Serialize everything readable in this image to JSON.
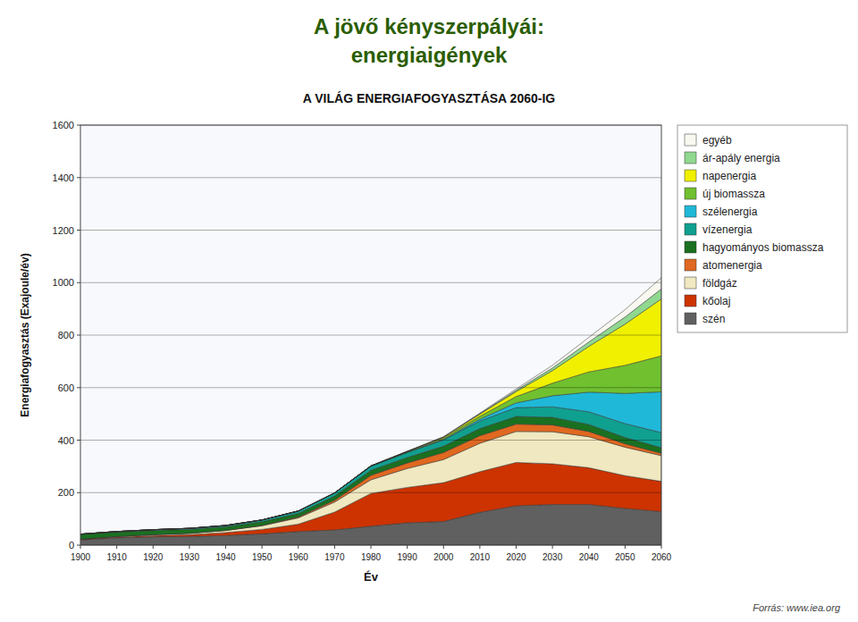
{
  "chart_data": {
    "type": "area",
    "stacked": true,
    "title": [
      "A jövő kényszerpályái:",
      "energiaigények"
    ],
    "subtitle": "A VILÁG ENERGIAFOGYASZTÁSA 2060-IG",
    "x_label": "Év",
    "y_label": "Energiafogyasztás (Exajoule/év)",
    "source": "Forrás: www.iea.org",
    "x": [
      1900,
      1910,
      1920,
      1930,
      1940,
      1950,
      1960,
      1970,
      1980,
      1990,
      2000,
      2010,
      2020,
      2030,
      2040,
      2050,
      2060
    ],
    "xlim": [
      1900,
      2060
    ],
    "xticks": [
      1900,
      1910,
      1920,
      1930,
      1940,
      1950,
      1960,
      1970,
      1980,
      1990,
      2000,
      2010,
      2020,
      2030,
      2040,
      2050,
      2060
    ],
    "ylim": [
      0,
      1600
    ],
    "yticks": [
      0,
      200,
      400,
      600,
      800,
      1000,
      1200,
      1400,
      1600
    ],
    "grid": true,
    "legend": "right",
    "series": [
      {
        "name": "szén",
        "color": "#606060",
        "values": [
          20,
          28,
          32,
          33,
          37,
          43,
          52,
          58,
          72,
          85,
          90,
          125,
          150,
          155,
          155,
          140,
          128
        ]
      },
      {
        "name": "kőolaj",
        "color": "#cc3300",
        "values": [
          2,
          3,
          5,
          7,
          11,
          17,
          28,
          68,
          125,
          135,
          148,
          155,
          165,
          155,
          140,
          125,
          115
        ]
      },
      {
        "name": "földgáz",
        "color": "#f0e8c0",
        "values": [
          1,
          2,
          3,
          5,
          8,
          14,
          24,
          38,
          52,
          72,
          88,
          108,
          118,
          122,
          118,
          108,
          98
        ]
      },
      {
        "name": "atomenergia",
        "color": "#e06820",
        "values": [
          0,
          0,
          0,
          0,
          0,
          1,
          3,
          7,
          17,
          21,
          27,
          29,
          28,
          26,
          20,
          13,
          9
        ]
      },
      {
        "name": "hagyományos biomassza",
        "color": "#1a7020",
        "values": [
          18,
          17,
          16,
          15,
          14,
          14,
          14,
          16,
          19,
          21,
          24,
          27,
          29,
          29,
          27,
          24,
          21
        ]
      },
      {
        "name": "vízenergia",
        "color": "#10a090",
        "values": [
          1,
          2,
          3,
          4,
          5,
          7,
          9,
          12,
          16,
          19,
          24,
          29,
          34,
          40,
          48,
          53,
          58
        ]
      },
      {
        "name": "szélenergia",
        "color": "#20b8d8",
        "values": [
          0,
          0,
          0,
          0,
          0,
          0,
          0,
          0,
          0,
          1,
          2,
          7,
          18,
          42,
          75,
          115,
          155
        ]
      },
      {
        "name": "új biomassza",
        "color": "#70c030",
        "values": [
          0,
          0,
          0,
          0,
          0,
          0,
          0,
          0,
          1,
          2,
          5,
          11,
          24,
          48,
          77,
          107,
          137
        ]
      },
      {
        "name": "napenergia",
        "color": "#f0f000",
        "values": [
          0,
          0,
          0,
          0,
          0,
          0,
          0,
          0,
          0,
          1,
          3,
          8,
          19,
          48,
          97,
          157,
          217
        ]
      },
      {
        "name": "ár-apály energia",
        "color": "#90d890",
        "values": [
          0,
          0,
          0,
          0,
          0,
          0,
          0,
          0,
          0,
          0,
          1,
          2,
          5,
          10,
          17,
          27,
          38
        ]
      },
      {
        "name": "egyéb",
        "color": "#f8f8f0",
        "values": [
          0,
          0,
          0,
          0,
          0,
          0,
          0,
          0,
          0,
          0,
          1,
          2,
          5,
          10,
          17,
          28,
          43
        ]
      }
    ]
  }
}
